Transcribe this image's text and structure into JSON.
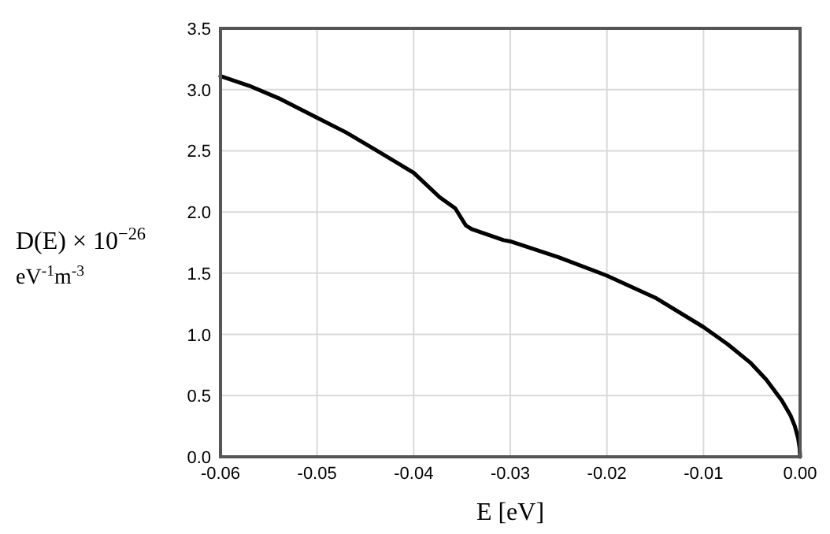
{
  "chart_data": {
    "type": "line",
    "xlabel": "E [eV]",
    "ylabel": "D(E) × 10$^{−26}$\neV$^{-1}$m$^{-3}$",
    "xlim": [
      -0.06,
      0
    ],
    "ylim": [
      0,
      3.5
    ],
    "xticks": [
      {
        "value": -0.06,
        "label": "-0.06"
      },
      {
        "value": -0.05,
        "label": "-0.05"
      },
      {
        "value": -0.04,
        "label": "-0.04"
      },
      {
        "value": -0.03,
        "label": "-0.03"
      },
      {
        "value": -0.02,
        "label": "-0.02"
      },
      {
        "value": -0.01,
        "label": "-0.01"
      },
      {
        "value": 0,
        "label": "0.00"
      }
    ],
    "yticks": [
      {
        "value": 0,
        "label": "0.0"
      },
      {
        "value": 0.5,
        "label": "0.5"
      },
      {
        "value": 1,
        "label": "1.0"
      },
      {
        "value": 1.5,
        "label": "1.5"
      },
      {
        "value": 2,
        "label": "2.0"
      },
      {
        "value": 2.5,
        "label": "2.5"
      },
      {
        "value": 3,
        "label": "3.0"
      },
      {
        "value": 3.5,
        "label": "3.5"
      }
    ],
    "grid": true,
    "marker": "none",
    "line_style": "solid",
    "series": [
      {
        "color": "#000000",
        "x": [
          -0.06,
          -0.057,
          -0.054,
          -0.05,
          -0.047,
          -0.044,
          -0.04,
          -0.0373,
          -0.0357,
          -0.0346,
          -0.034,
          -0.0307,
          -0.03,
          -0.025,
          -0.02,
          -0.015,
          -0.01,
          -0.0075,
          -0.00516,
          -0.0035,
          -0.00189,
          -0.001,
          -0.00054,
          -0.0002,
          -5e-05,
          0
        ],
        "values": [
          3.11,
          3.03,
          2.93,
          2.77,
          2.65,
          2.51,
          2.32,
          2.12,
          2.03,
          1.89,
          1.86,
          1.77,
          1.76,
          1.63,
          1.48,
          1.3,
          1.06,
          0.92,
          0.77,
          0.63,
          0.46,
          0.34,
          0.25,
          0.15,
          0.075,
          0
        ]
      }
    ]
  }
}
